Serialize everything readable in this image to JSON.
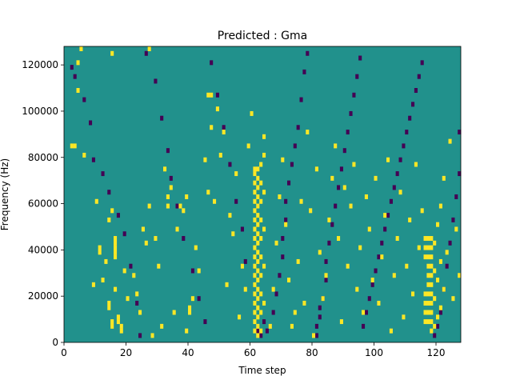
{
  "chart_data": {
    "type": "heatmap",
    "title": "Predicted : Gma",
    "xlabel": "Time step",
    "ylabel": "Frequency (Hz)",
    "xlim": [
      0,
      128
    ],
    "ylim": [
      0,
      128000
    ],
    "xticks": [
      0,
      20,
      40,
      60,
      80,
      100,
      120
    ],
    "yticks": [
      0,
      20000,
      40000,
      60000,
      80000,
      100000,
      120000
    ],
    "ytick_labels": [
      "0",
      "20000",
      "40000",
      "60000",
      "80000",
      "100000",
      "120000"
    ],
    "grid": false,
    "legend": "none",
    "colormap": "viridis",
    "value_levels": [
      0,
      1,
      2
    ],
    "background_value": 1,
    "colors": {
      "0": "#440154",
      "1": "#21918c",
      "2": "#fde725"
    },
    "bins": {
      "time_steps": 128,
      "frequency_bins": 64,
      "bin_hz": 2000
    },
    "cells_value_2": [
      [
        5,
        63
      ],
      [
        27,
        63
      ],
      [
        15,
        62
      ],
      [
        4,
        60
      ],
      [
        4,
        54
      ],
      [
        2,
        42
      ],
      [
        3,
        42
      ],
      [
        6,
        40
      ],
      [
        10,
        30
      ],
      [
        11,
        20
      ],
      [
        11,
        19
      ],
      [
        14,
        26
      ],
      [
        15,
        28
      ],
      [
        16,
        22
      ],
      [
        16,
        21
      ],
      [
        16,
        20
      ],
      [
        16,
        19
      ],
      [
        16,
        18
      ],
      [
        17,
        4
      ],
      [
        17,
        5
      ],
      [
        9,
        12
      ],
      [
        12,
        13
      ],
      [
        13,
        17
      ],
      [
        14,
        7
      ],
      [
        14,
        8
      ],
      [
        15,
        3
      ],
      [
        15,
        4
      ],
      [
        16,
        11
      ],
      [
        18,
        2
      ],
      [
        18,
        3
      ],
      [
        19,
        15
      ],
      [
        20,
        9
      ],
      [
        22,
        14
      ],
      [
        23,
        10
      ],
      [
        24,
        6
      ],
      [
        25,
        24
      ],
      [
        26,
        21
      ],
      [
        27,
        29
      ],
      [
        28,
        1
      ],
      [
        29,
        22
      ],
      [
        30,
        16
      ],
      [
        31,
        3
      ],
      [
        32,
        37
      ],
      [
        33,
        29
      ],
      [
        33,
        31
      ],
      [
        34,
        33
      ],
      [
        35,
        6
      ],
      [
        36,
        24
      ],
      [
        37,
        29
      ],
      [
        38,
        28
      ],
      [
        39,
        31
      ],
      [
        39,
        2
      ],
      [
        40,
        6
      ],
      [
        40,
        7
      ],
      [
        41,
        9
      ],
      [
        42,
        20
      ],
      [
        43,
        15
      ],
      [
        45,
        39
      ],
      [
        46,
        32
      ],
      [
        46,
        53
      ],
      [
        47,
        46
      ],
      [
        47,
        53
      ],
      [
        48,
        30
      ],
      [
        49,
        50
      ],
      [
        50,
        40
      ],
      [
        51,
        45
      ],
      [
        52,
        12
      ],
      [
        53,
        27
      ],
      [
        54,
        23
      ],
      [
        55,
        36
      ],
      [
        56,
        5
      ],
      [
        57,
        16
      ],
      [
        58,
        11
      ],
      [
        59,
        42
      ],
      [
        60,
        49
      ],
      [
        61,
        2
      ],
      [
        61,
        4
      ],
      [
        61,
        6
      ],
      [
        61,
        8
      ],
      [
        61,
        10
      ],
      [
        61,
        12
      ],
      [
        61,
        14
      ],
      [
        61,
        16
      ],
      [
        61,
        18
      ],
      [
        61,
        20
      ],
      [
        61,
        22
      ],
      [
        61,
        24
      ],
      [
        61,
        26
      ],
      [
        61,
        28
      ],
      [
        61,
        30
      ],
      [
        61,
        32
      ],
      [
        61,
        34
      ],
      [
        61,
        36
      ],
      [
        62,
        1
      ],
      [
        62,
        3
      ],
      [
        62,
        5
      ],
      [
        62,
        7
      ],
      [
        62,
        9
      ],
      [
        62,
        11
      ],
      [
        62,
        13
      ],
      [
        62,
        15
      ],
      [
        62,
        17
      ],
      [
        62,
        19
      ],
      [
        62,
        21
      ],
      [
        62,
        23
      ],
      [
        62,
        25
      ],
      [
        62,
        27
      ],
      [
        62,
        29
      ],
      [
        62,
        31
      ],
      [
        62,
        33
      ],
      [
        62,
        35
      ],
      [
        61,
        37
      ],
      [
        62,
        37
      ],
      [
        63,
        2
      ],
      [
        63,
        6
      ],
      [
        63,
        10
      ],
      [
        63,
        14
      ],
      [
        63,
        18
      ],
      [
        63,
        22
      ],
      [
        63,
        26
      ],
      [
        63,
        30
      ],
      [
        63,
        34
      ],
      [
        63,
        38
      ],
      [
        64,
        8
      ],
      [
        64,
        16
      ],
      [
        64,
        24
      ],
      [
        64,
        32
      ],
      [
        64,
        40
      ],
      [
        64,
        44
      ],
      [
        66,
        3
      ],
      [
        67,
        11
      ],
      [
        68,
        21
      ],
      [
        69,
        31
      ],
      [
        70,
        39
      ],
      [
        71,
        25
      ],
      [
        72,
        13
      ],
      [
        73,
        3
      ],
      [
        74,
        6
      ],
      [
        75,
        17
      ],
      [
        76,
        30
      ],
      [
        77,
        8
      ],
      [
        78,
        45
      ],
      [
        79,
        28
      ],
      [
        80,
        1
      ],
      [
        81,
        37
      ],
      [
        82,
        19
      ],
      [
        83,
        9
      ],
      [
        84,
        14
      ],
      [
        85,
        26
      ],
      [
        86,
        35
      ],
      [
        87,
        42
      ],
      [
        88,
        22
      ],
      [
        89,
        4
      ],
      [
        90,
        33
      ],
      [
        91,
        16
      ],
      [
        92,
        29
      ],
      [
        93,
        38
      ],
      [
        94,
        11
      ],
      [
        95,
        20
      ],
      [
        96,
        6
      ],
      [
        97,
        31
      ],
      [
        98,
        24
      ],
      [
        99,
        13
      ],
      [
        100,
        35
      ],
      [
        101,
        8
      ],
      [
        102,
        18
      ],
      [
        103,
        27
      ],
      [
        104,
        39
      ],
      [
        105,
        2
      ],
      [
        106,
        14
      ],
      [
        107,
        22
      ],
      [
        108,
        32
      ],
      [
        109,
        5
      ],
      [
        110,
        16
      ],
      [
        111,
        26
      ],
      [
        112,
        10
      ],
      [
        113,
        38
      ],
      [
        114,
        20
      ],
      [
        115,
        28
      ],
      [
        116,
        4
      ],
      [
        116,
        6
      ],
      [
        116,
        8
      ],
      [
        116,
        10
      ],
      [
        116,
        18
      ],
      [
        116,
        20
      ],
      [
        116,
        22
      ],
      [
        117,
        4
      ],
      [
        117,
        6
      ],
      [
        117,
        8
      ],
      [
        117,
        10
      ],
      [
        117,
        12
      ],
      [
        117,
        14
      ],
      [
        117,
        16
      ],
      [
        117,
        18
      ],
      [
        117,
        20
      ],
      [
        117,
        22
      ],
      [
        118,
        2
      ],
      [
        118,
        4
      ],
      [
        118,
        6
      ],
      [
        118,
        8
      ],
      [
        118,
        10
      ],
      [
        118,
        12
      ],
      [
        118,
        14
      ],
      [
        118,
        16
      ],
      [
        118,
        18
      ],
      [
        118,
        20
      ],
      [
        118,
        22
      ],
      [
        119,
        3
      ],
      [
        119,
        9
      ],
      [
        119,
        15
      ],
      [
        119,
        21
      ],
      [
        120,
        5
      ],
      [
        120,
        13
      ],
      [
        120,
        25
      ],
      [
        121,
        7
      ],
      [
        121,
        17
      ],
      [
        121,
        29
      ],
      [
        122,
        11
      ],
      [
        122,
        35
      ],
      [
        123,
        19
      ],
      [
        124,
        43
      ],
      [
        125,
        9
      ],
      [
        126,
        24
      ],
      [
        127,
        14
      ]
    ],
    "cells_value_0": [
      [
        2,
        59
      ],
      [
        3,
        57
      ],
      [
        6,
        52
      ],
      [
        8,
        47
      ],
      [
        9,
        39
      ],
      [
        12,
        36
      ],
      [
        14,
        32
      ],
      [
        17,
        27
      ],
      [
        19,
        23
      ],
      [
        21,
        16
      ],
      [
        23,
        8
      ],
      [
        24,
        1
      ],
      [
        26,
        62
      ],
      [
        29,
        56
      ],
      [
        31,
        48
      ],
      [
        33,
        41
      ],
      [
        34,
        35
      ],
      [
        36,
        29
      ],
      [
        38,
        22
      ],
      [
        41,
        15
      ],
      [
        43,
        9
      ],
      [
        45,
        4
      ],
      [
        47,
        60
      ],
      [
        49,
        53
      ],
      [
        51,
        46
      ],
      [
        53,
        38
      ],
      [
        55,
        30
      ],
      [
        57,
        24
      ],
      [
        58,
        17
      ],
      [
        62,
        2
      ],
      [
        63,
        1
      ],
      [
        64,
        4
      ],
      [
        65,
        2
      ],
      [
        67,
        6
      ],
      [
        68,
        10
      ],
      [
        69,
        14
      ],
      [
        70,
        18
      ],
      [
        70,
        22
      ],
      [
        71,
        26
      ],
      [
        71,
        30
      ],
      [
        72,
        34
      ],
      [
        73,
        38
      ],
      [
        74,
        42
      ],
      [
        75,
        46
      ],
      [
        76,
        52
      ],
      [
        77,
        58
      ],
      [
        78,
        62
      ],
      [
        81,
        1
      ],
      [
        81,
        3
      ],
      [
        82,
        5
      ],
      [
        82,
        7
      ],
      [
        83,
        9
      ],
      [
        84,
        13
      ],
      [
        84,
        17
      ],
      [
        85,
        21
      ],
      [
        86,
        25
      ],
      [
        87,
        29
      ],
      [
        88,
        33
      ],
      [
        89,
        37
      ],
      [
        90,
        41
      ],
      [
        91,
        45
      ],
      [
        92,
        49
      ],
      [
        93,
        53
      ],
      [
        94,
        57
      ],
      [
        95,
        61
      ],
      [
        96,
        3
      ],
      [
        97,
        6
      ],
      [
        98,
        9
      ],
      [
        99,
        12
      ],
      [
        100,
        15
      ],
      [
        101,
        18
      ],
      [
        102,
        21
      ],
      [
        103,
        24
      ],
      [
        104,
        27
      ],
      [
        105,
        30
      ],
      [
        106,
        33
      ],
      [
        107,
        36
      ],
      [
        108,
        39
      ],
      [
        109,
        42
      ],
      [
        110,
        45
      ],
      [
        111,
        48
      ],
      [
        112,
        51
      ],
      [
        113,
        54
      ],
      [
        114,
        57
      ],
      [
        115,
        60
      ],
      [
        119,
        1
      ],
      [
        120,
        3
      ],
      [
        121,
        6
      ],
      [
        122,
        11
      ],
      [
        123,
        16
      ],
      [
        124,
        21
      ],
      [
        125,
        26
      ],
      [
        126,
        31
      ],
      [
        127,
        36
      ],
      [
        127,
        45
      ]
    ]
  }
}
